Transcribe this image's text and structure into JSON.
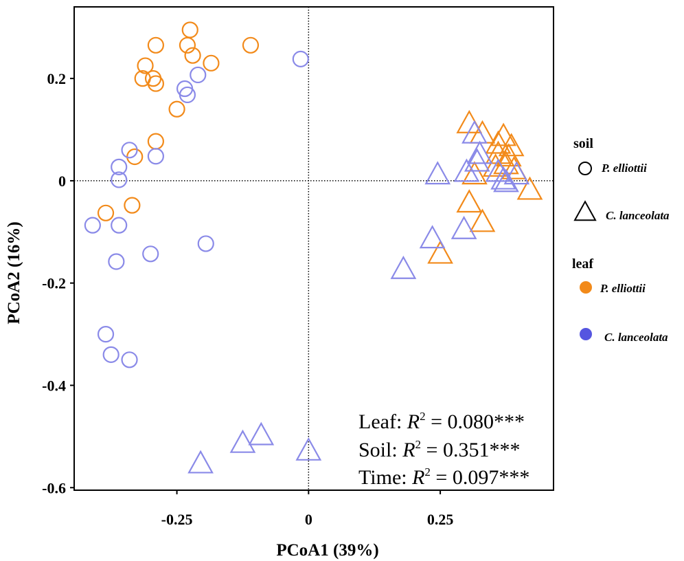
{
  "chart_data": {
    "type": "scatter",
    "xlabel": "PCoA1 (39%)",
    "ylabel": "PCoA2 (16%)",
    "xlim": [
      -0.445,
      0.465
    ],
    "ylim": [
      -0.605,
      0.34
    ],
    "x_ticks": [
      {
        "value": -0.25,
        "label": "-0.25"
      },
      {
        "value": 0,
        "label": "0"
      },
      {
        "value": 0.25,
        "label": "0.25"
      }
    ],
    "y_ticks": [
      {
        "value": 0.2,
        "label": "0.2"
      },
      {
        "value": 0,
        "label": "0"
      },
      {
        "value": -0.2,
        "label": "-0.2"
      },
      {
        "value": -0.4,
        "label": "-0.4"
      },
      {
        "value": -0.6,
        "label": "-0.6"
      }
    ],
    "reference_lines": {
      "x": 0,
      "y": 0
    },
    "colors": {
      "P. elliottii": "#f28a1a",
      "C. lanceolata": "#8a8ae8"
    },
    "legend": {
      "soil_title": "soil",
      "soil_items": [
        {
          "label": "P. elliottii",
          "shape": "circle"
        },
        {
          "label": "C. lanceolata",
          "shape": "triangle"
        }
      ],
      "leaf_title": "leaf",
      "leaf_items": [
        {
          "label": "P. elliottii",
          "color": "#f28a1a"
        },
        {
          "label": "C. lanceolata",
          "color": "#5555e0"
        }
      ]
    },
    "annotations": [
      {
        "prefix": "Leaf: ",
        "var": "R",
        "sup": "2",
        "suffix": " = 0.080***"
      },
      {
        "prefix": "Soil: ",
        "var": "R",
        "sup": "2",
        "suffix": " = 0.351***"
      },
      {
        "prefix": "Time: ",
        "var": "R",
        "sup": "2",
        "suffix": " = 0.097***"
      }
    ],
    "series": [
      {
        "name": "soil P. elliottii / leaf P. elliottii",
        "soil": "P. elliottii",
        "leaf": "P. elliottii",
        "x": [
          -0.225,
          -0.29,
          -0.23,
          -0.22,
          -0.31,
          -0.295,
          -0.315,
          -0.29,
          -0.185,
          -0.11,
          -0.25,
          -0.29,
          -0.33,
          -0.385,
          -0.335
        ],
        "y": [
          0.295,
          0.265,
          0.265,
          0.245,
          0.225,
          0.2,
          0.2,
          0.19,
          0.23,
          0.265,
          0.14,
          0.077,
          0.047,
          -0.063,
          -0.048
        ]
      },
      {
        "name": "soil P. elliottii / leaf C. lanceolata",
        "soil": "P. elliottii",
        "leaf": "C. lanceolata",
        "x": [
          -0.015,
          -0.21,
          -0.235,
          -0.23,
          -0.34,
          -0.29,
          -0.36,
          -0.36,
          -0.41,
          -0.36,
          -0.195,
          -0.3,
          -0.365,
          -0.385,
          -0.375,
          -0.34
        ],
        "y": [
          0.238,
          0.207,
          0.18,
          0.168,
          0.06,
          0.048,
          0.027,
          0.002,
          -0.087,
          -0.087,
          -0.123,
          -0.143,
          -0.158,
          -0.3,
          -0.34,
          -0.35
        ]
      },
      {
        "name": "soil C. lanceolata / leaf P. elliottii",
        "soil": "C. lanceolata",
        "leaf": "P. elliottii",
        "x": [
          0.305,
          0.33,
          0.37,
          0.36,
          0.385,
          0.36,
          0.38,
          0.375,
          0.355,
          0.39,
          0.315,
          0.42,
          0.305,
          0.33,
          0.25
        ],
        "y": [
          0.11,
          0.09,
          0.085,
          0.07,
          0.065,
          0.05,
          0.045,
          0.03,
          0.025,
          0.02,
          0.01,
          -0.02,
          -0.045,
          -0.083,
          -0.145
        ]
      },
      {
        "name": "soil C. lanceolata / leaf C. lanceolata",
        "soil": "C. lanceolata",
        "leaf": "C. lanceolata",
        "x": [
          0.315,
          0.325,
          0.32,
          0.245,
          0.3,
          0.36,
          0.37,
          0.395,
          0.375,
          0.295,
          0.235,
          0.18,
          -0.09,
          -0.125,
          -0.205,
          0
        ],
        "y": [
          0.09,
          0.05,
          0.035,
          0.01,
          0.015,
          0.015,
          0.0,
          0.01,
          -0.005,
          -0.097,
          -0.115,
          -0.175,
          -0.5,
          -0.515,
          -0.555,
          -0.53
        ]
      }
    ]
  }
}
